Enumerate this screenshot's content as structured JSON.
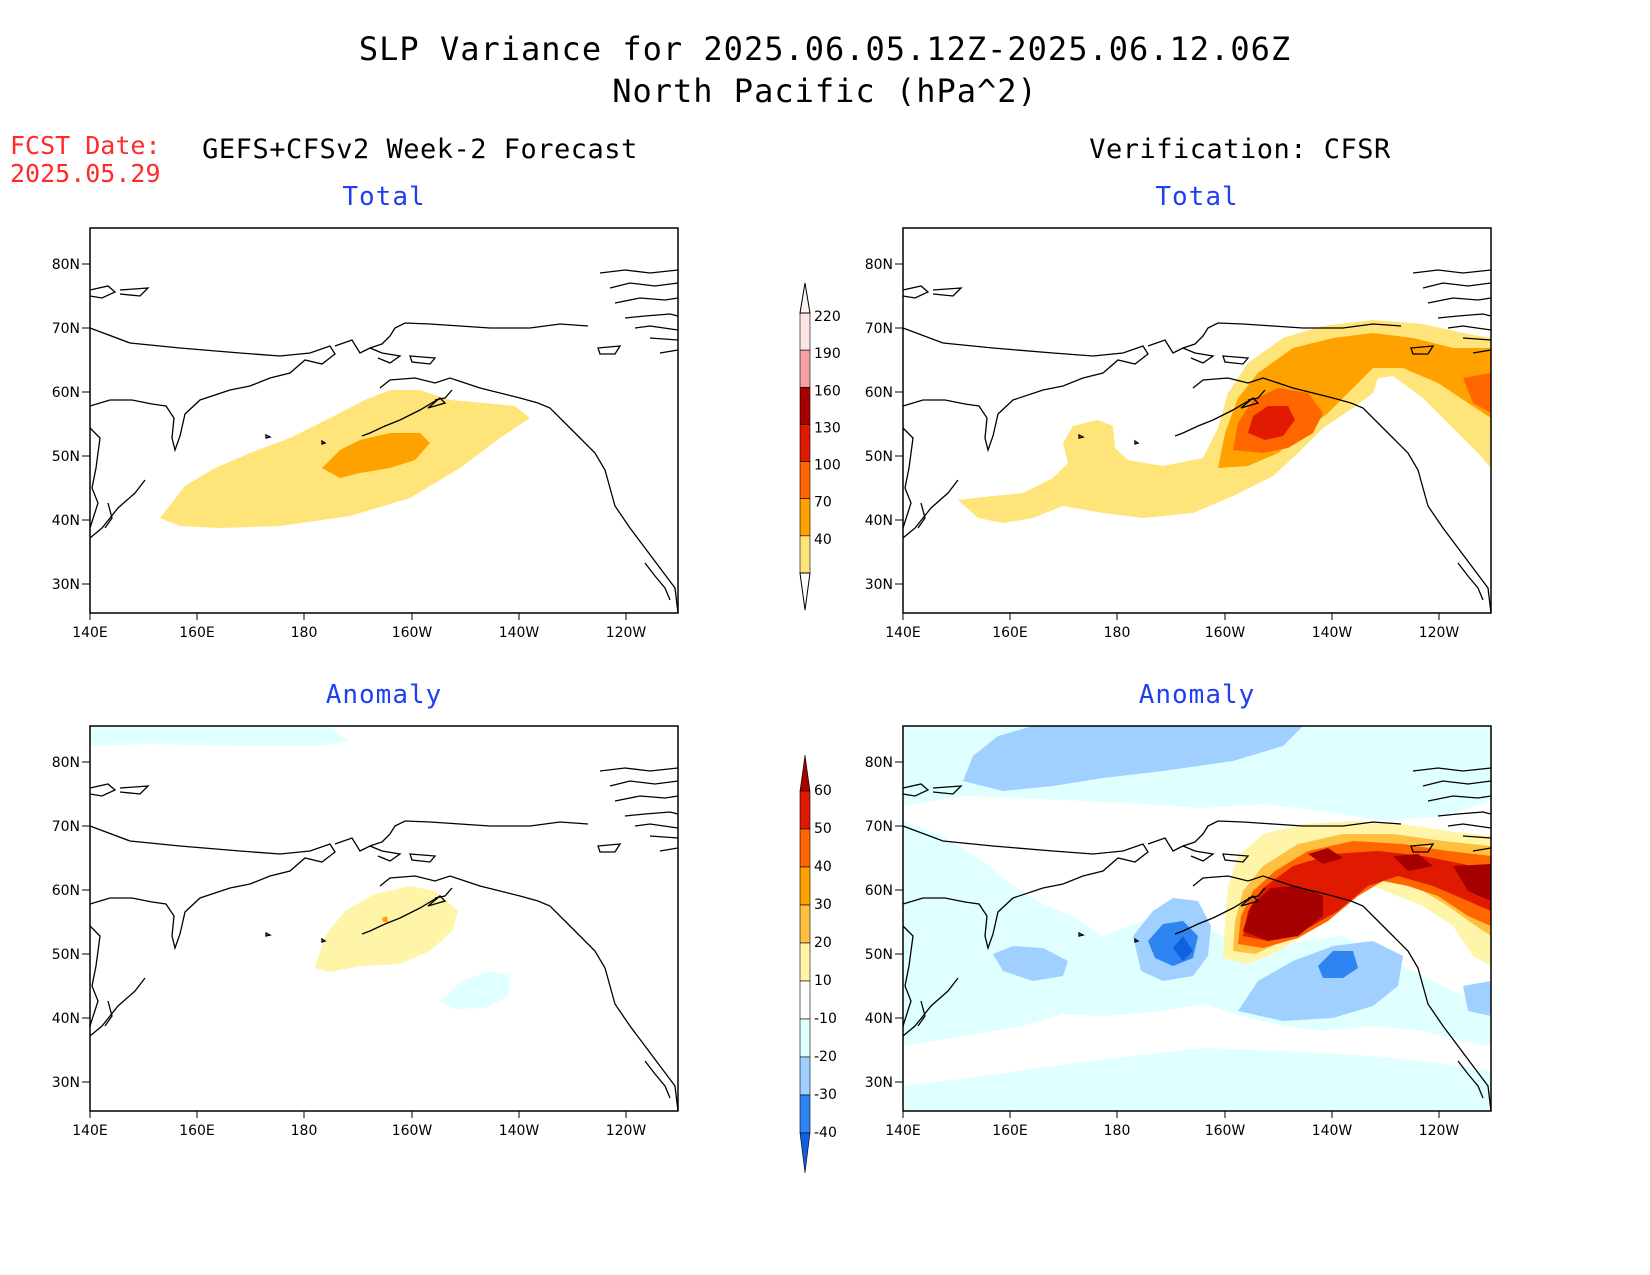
{
  "header": {
    "title_line1": "SLP Variance for 2025.06.05.12Z-2025.06.12.06Z",
    "title_line2": "North Pacific (hPa^2)"
  },
  "fcst": {
    "label": "FCST Date:",
    "date": "2025.05.29"
  },
  "columns": {
    "left": "GEFS+CFSv2 Week-2 Forecast",
    "right": "Verification: CFSR"
  },
  "panel_titles": {
    "top": "Total",
    "bottom": "Anomaly"
  },
  "axes": {
    "lat_labels": [
      "80N",
      "70N",
      "60N",
      "50N",
      "40N",
      "30N"
    ],
    "lon_labels": [
      "140E",
      "160E",
      "180",
      "160W",
      "140W",
      "120W"
    ]
  },
  "colorbar_total": {
    "labels": [
      "220",
      "190",
      "160",
      "130",
      "100",
      "70",
      "40"
    ],
    "colors": [
      "#fbe5e5",
      "#f4a1a1",
      "#a60000",
      "#e01a00",
      "#ff6600",
      "#ffa200",
      "#ffe47a"
    ]
  },
  "colorbar_anomaly": {
    "labels": [
      "60",
      "50",
      "40",
      "30",
      "20",
      "10",
      "-10",
      "-20",
      "-30",
      "-40"
    ],
    "colors": [
      "#a60000",
      "#e01a00",
      "#ff6600",
      "#ffa200",
      "#ffbf40",
      "#fff5a8",
      "#ffffff",
      "#e0ffff",
      "#a0d0ff",
      "#2e84f0",
      "#1060e0"
    ]
  },
  "colors": {
    "fcst_red": "#ff2a2a",
    "subtitle_blue": "#1f3ff0"
  }
}
